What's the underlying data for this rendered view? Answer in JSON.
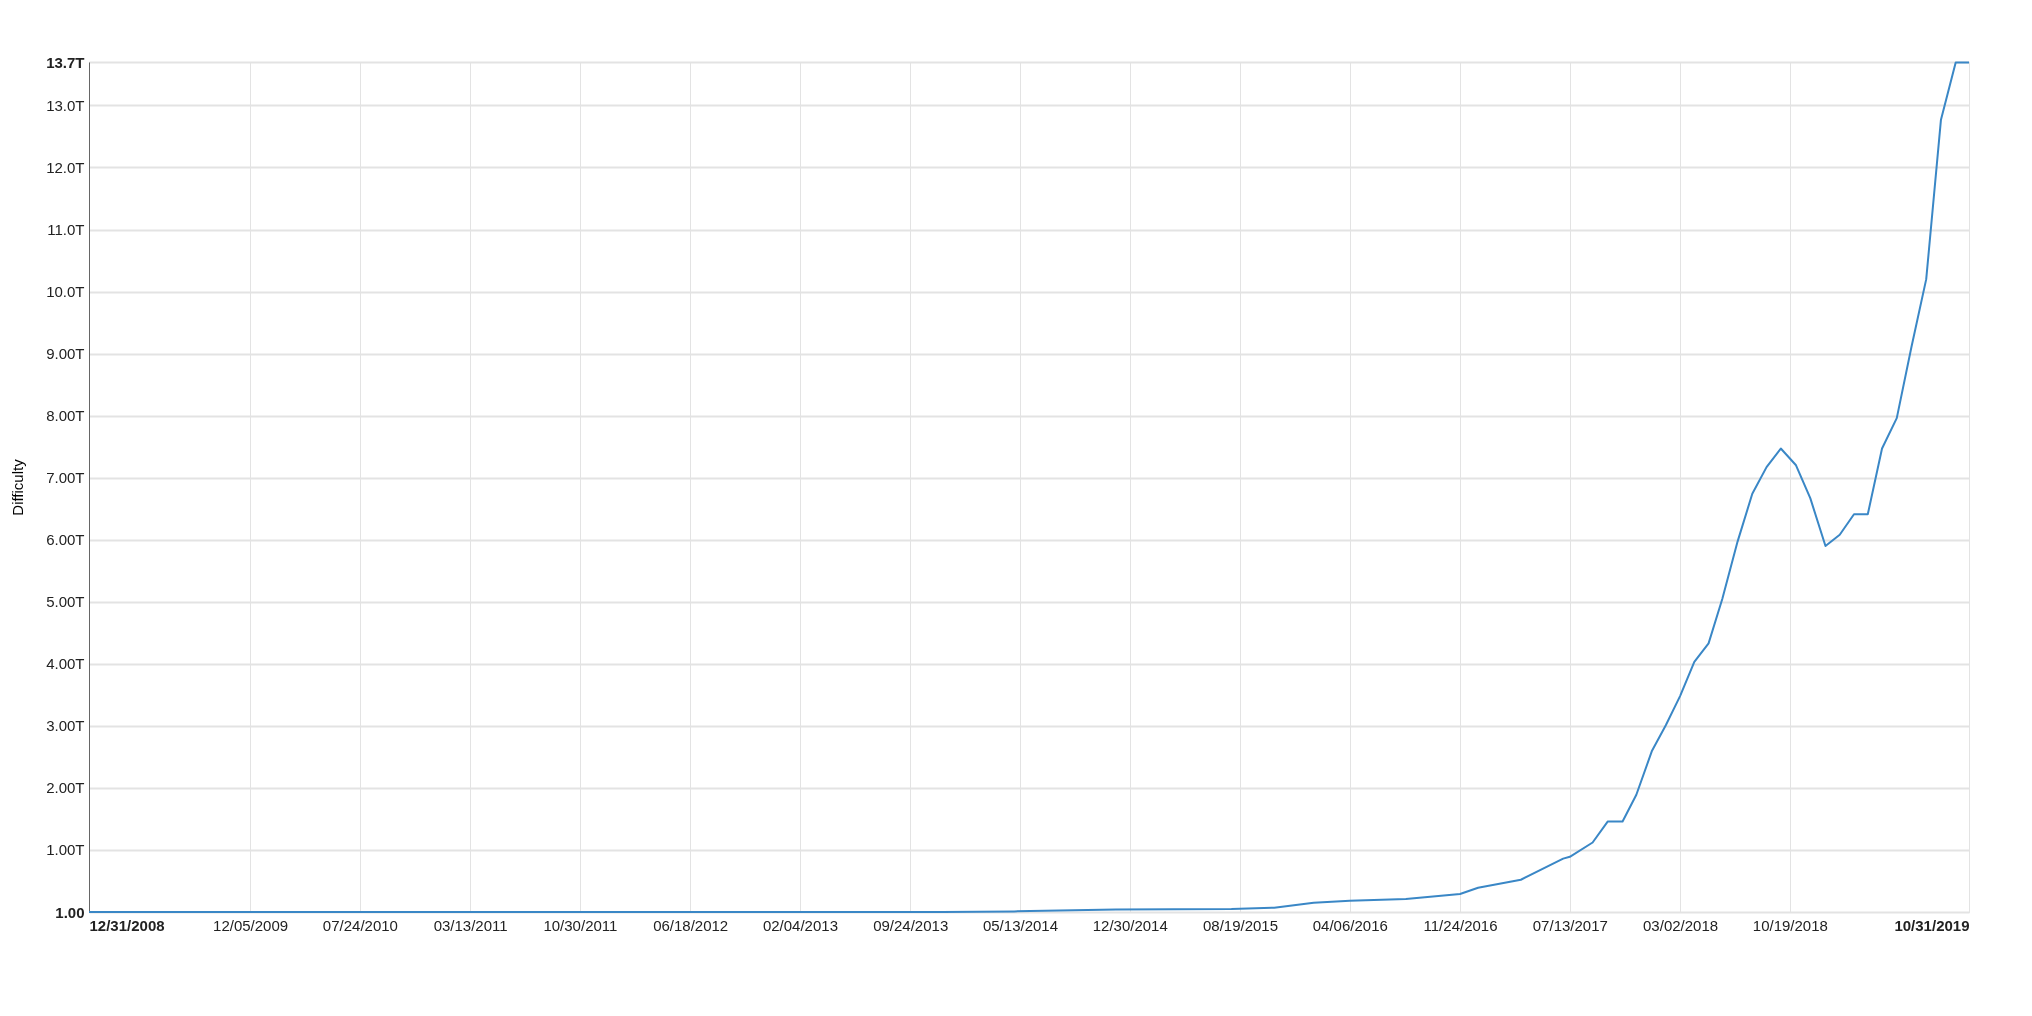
{
  "chart_data": {
    "type": "line",
    "ylabel": "Difficulty",
    "grid": true,
    "marker": "none",
    "line_style": "solid",
    "xlim": [
      "2008-12-31",
      "2019-10-31"
    ],
    "xticks": [
      {
        "value": "2008-12-31",
        "label": "12/31/2008"
      },
      {
        "value": "2009-12-05",
        "label": "12/05/2009"
      },
      {
        "value": "2010-07-24",
        "label": "07/24/2010"
      },
      {
        "value": "2011-03-13",
        "label": "03/13/2011"
      },
      {
        "value": "2011-10-30",
        "label": "10/30/2011"
      },
      {
        "value": "2012-06-18",
        "label": "06/18/2012"
      },
      {
        "value": "2013-02-04",
        "label": "02/04/2013"
      },
      {
        "value": "2013-09-24",
        "label": "09/24/2013"
      },
      {
        "value": "2014-05-13",
        "label": "05/13/2014"
      },
      {
        "value": "2014-12-30",
        "label": "12/30/2014"
      },
      {
        "value": "2015-08-19",
        "label": "08/19/2015"
      },
      {
        "value": "2016-04-06",
        "label": "04/06/2016"
      },
      {
        "value": "2016-11-24",
        "label": "11/24/2016"
      },
      {
        "value": "2017-07-13",
        "label": "07/13/2017"
      },
      {
        "value": "2018-03-02",
        "label": "03/02/2018"
      },
      {
        "value": "2018-10-19",
        "label": "10/19/2018"
      },
      {
        "value": "2019-10-31",
        "label": "10/31/2019"
      }
    ],
    "ylim": [
      1,
      13700000000000
    ],
    "yticks": [
      {
        "value": 1,
        "label": "1.00"
      },
      {
        "value": 1000000000000,
        "label": "1.00T"
      },
      {
        "value": 2000000000000,
        "label": "2.00T"
      },
      {
        "value": 3000000000000,
        "label": "3.00T"
      },
      {
        "value": 4000000000000,
        "label": "4.00T"
      },
      {
        "value": 5000000000000,
        "label": "5.00T"
      },
      {
        "value": 6000000000000,
        "label": "6.00T"
      },
      {
        "value": 7000000000000,
        "label": "7.00T"
      },
      {
        "value": 8000000000000,
        "label": "8.00T"
      },
      {
        "value": 9000000000000,
        "label": "9.00T"
      },
      {
        "value": 10000000000000,
        "label": "10.0T"
      },
      {
        "value": 11000000000000,
        "label": "11.0T"
      },
      {
        "value": 12000000000000,
        "label": "12.0T"
      },
      {
        "value": 13000000000000,
        "label": "13.0T"
      },
      {
        "value": 13700000000000,
        "label": "13.7T"
      }
    ],
    "series": [
      {
        "color": "#3a87c6",
        "x": [
          "2008-12-31",
          "2013-01-01",
          "2013-12-01",
          "2014-05-01",
          "2014-12-01",
          "2015-08-01",
          "2015-10-30",
          "2016-01-21",
          "2016-04-06",
          "2016-08-02",
          "2016-11-24",
          "2017-01-01",
          "2017-04-01",
          "2017-06-29",
          "2017-07-13",
          "2017-08-30",
          "2017-10-01",
          "2017-11-01",
          "2017-11-30",
          "2018-01-02",
          "2018-01-31",
          "2018-03-02",
          "2018-04-01",
          "2018-05-01",
          "2018-05-30",
          "2018-07-01",
          "2018-08-01",
          "2018-08-31",
          "2018-09-30",
          "2018-11-01",
          "2018-12-01",
          "2019-01-02",
          "2019-02-01",
          "2019-03-03",
          "2019-04-01",
          "2019-05-01",
          "2019-06-01",
          "2019-07-02",
          "2019-08-02",
          "2019-09-02",
          "2019-10-03",
          "2019-10-31"
        ],
        "values": [
          1,
          1,
          1,
          10000000000,
          40000000000,
          50000000000,
          70000000000,
          150000000000,
          180000000000,
          210000000000,
          290000000000,
          390000000000,
          520000000000,
          860000000000,
          890000000000,
          1120000000000,
          1460000000000,
          1460000000000,
          1890000000000,
          2600000000000,
          3010000000000,
          3480000000000,
          4030000000000,
          4330000000000,
          5050000000000,
          5970000000000,
          6740000000000,
          7170000000000,
          7470000000000,
          7200000000000,
          6670000000000,
          5900000000000,
          6080000000000,
          6410000000000,
          6410000000000,
          7470000000000,
          7960000000000,
          9110000000000,
          10200000000000,
          12770000000000,
          13690000000000,
          13690000000000
        ]
      }
    ]
  }
}
